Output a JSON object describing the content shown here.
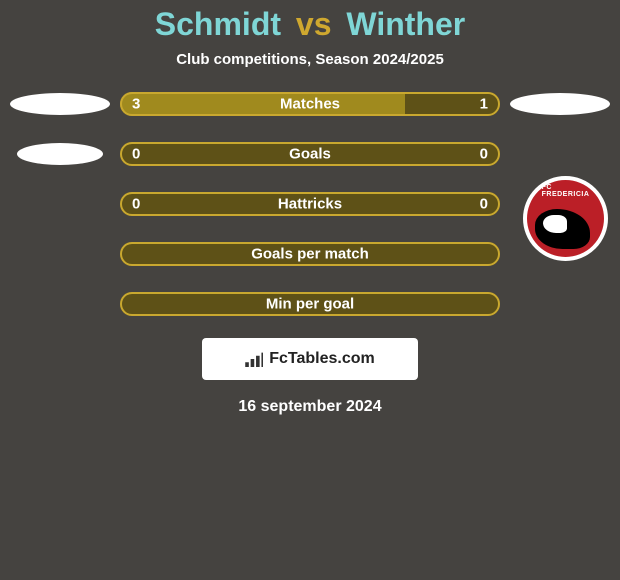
{
  "header": {
    "player_left": "Schmidt",
    "vs": "vs",
    "player_right": "Winther",
    "title_color_left": "#7fd6d6",
    "title_color_vs": "#cfa82f",
    "title_color_right": "#7fd6d6",
    "subtitle": "Club competitions, Season 2024/2025"
  },
  "colors": {
    "bar_left_fill": "#a08a1e",
    "bar_right_fill": "#5e5117",
    "bar_border": "#c9a82f",
    "empty_fill": "#5e5117"
  },
  "stats": [
    {
      "key": "matches",
      "label": "Matches",
      "left_value": "3",
      "right_value": "1",
      "left_pct": 75,
      "show_left_icon": "oval",
      "show_right_icon": "oval"
    },
    {
      "key": "goals",
      "label": "Goals",
      "left_value": "0",
      "right_value": "0",
      "left_pct": 0,
      "show_left_icon": "oval-small",
      "show_right_icon": "badge"
    },
    {
      "key": "hattricks",
      "label": "Hattricks",
      "left_value": "0",
      "right_value": "0",
      "left_pct": 0,
      "show_left_icon": "none",
      "show_right_icon": "none"
    },
    {
      "key": "gpm",
      "label": "Goals per match",
      "left_value": "",
      "right_value": "",
      "left_pct": 0,
      "show_left_icon": "none",
      "show_right_icon": "none"
    },
    {
      "key": "mpg",
      "label": "Min per goal",
      "left_value": "",
      "right_value": "",
      "left_pct": 0,
      "show_left_icon": "none",
      "show_right_icon": "none"
    }
  ],
  "watermark": {
    "text": "FcTables.com"
  },
  "date": "16 september 2024",
  "badge": {
    "text_top": "FC FREDERICIA"
  }
}
